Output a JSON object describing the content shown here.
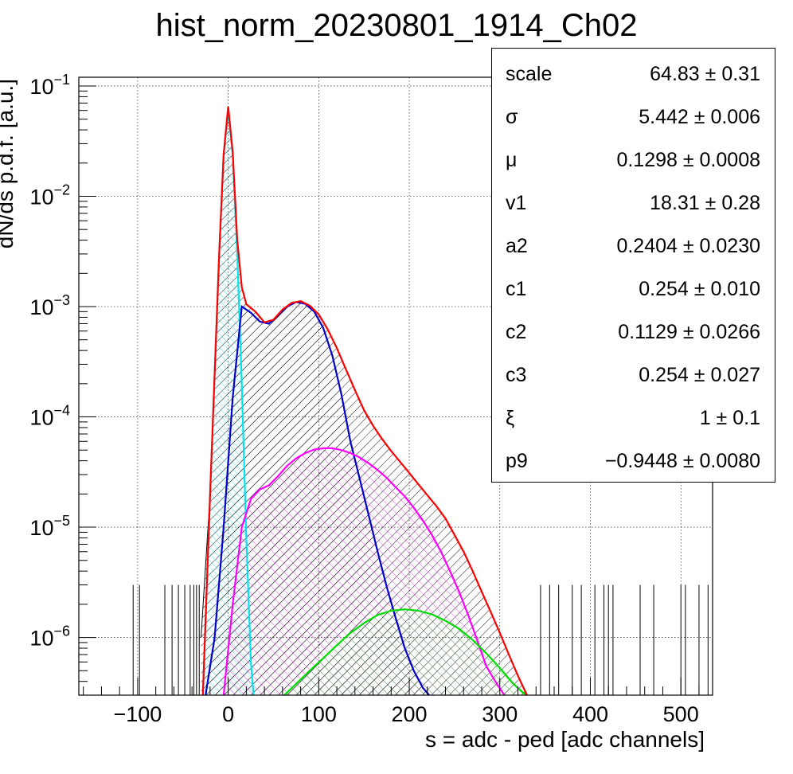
{
  "title": "hist_norm_20230801_1914_Ch02",
  "chart_data": {
    "type": "histogram",
    "title": "hist_norm_20230801_1914_Ch02",
    "xlabel": "s = adc - ped [adc channels]",
    "ylabel": "dN/ds p.d.f. [a.u.]",
    "xlim": [
      -165,
      535
    ],
    "ylim": [
      3e-07,
      0.12
    ],
    "yscale": "log",
    "grid": true,
    "x_ticks": [
      -100,
      0,
      100,
      200,
      300,
      400,
      500
    ],
    "x_tick_labels": [
      "−100",
      "0",
      "100",
      "200",
      "300",
      "400",
      "500"
    ],
    "y_ticks": [
      1e-06,
      1e-05,
      0.0001,
      0.001,
      0.01,
      0.1
    ],
    "y_tick_labels": [
      {
        "base": "10",
        "exp": "−6"
      },
      {
        "base": "10",
        "exp": "−5"
      },
      {
        "base": "10",
        "exp": "−4"
      },
      {
        "base": "10",
        "exp": "−3"
      },
      {
        "base": "10",
        "exp": "−2"
      },
      {
        "base": "10",
        "exp": "−1"
      }
    ],
    "series": [
      {
        "color": "#000000",
        "style": "histogram",
        "x": [
          -30,
          -20,
          -10,
          -5,
          0,
          5,
          10,
          15,
          20,
          30,
          40,
          50,
          60,
          70,
          80,
          90,
          100,
          110,
          120,
          130,
          140,
          150,
          160,
          170,
          180,
          190,
          200,
          210,
          220,
          230,
          240,
          250,
          260,
          270,
          280,
          290,
          300,
          310,
          320,
          330
        ],
        "y": [
          1e-06,
          2e-05,
          0.003,
          0.024,
          0.062,
          0.025,
          0.004,
          0.0015,
          0.00105,
          0.0009,
          0.00072,
          0.00076,
          0.00094,
          0.00108,
          0.00112,
          0.00102,
          0.00085,
          0.00062,
          0.00042,
          0.00027,
          0.000175,
          0.000115,
          8.3e-05,
          6.3e-05,
          4.9e-05,
          3.9e-05,
          3.1e-05,
          2.45e-05,
          1.95e-05,
          1.55e-05,
          1.2e-05,
          8.5e-06,
          6e-06,
          4e-06,
          2.6e-06,
          1.7e-06,
          1.1e-06,
          7e-07,
          4.5e-07,
          3e-07
        ]
      },
      {
        "color": "#ff0000",
        "style": "line",
        "x": [
          -28,
          -20,
          -10,
          -5,
          0,
          5,
          10,
          15,
          20,
          30,
          40,
          50,
          60,
          70,
          80,
          90,
          100,
          110,
          120,
          130,
          140,
          150,
          160,
          170,
          180,
          190,
          200,
          210,
          220,
          230,
          240,
          250,
          260,
          270,
          280,
          290,
          300,
          310,
          320,
          330,
          335
        ],
        "y": [
          3e-07,
          2e-05,
          0.003,
          0.024,
          0.065,
          0.025,
          0.004,
          0.0015,
          0.00105,
          0.0009,
          0.00072,
          0.00076,
          0.00094,
          0.00108,
          0.00112,
          0.00102,
          0.00085,
          0.00062,
          0.00042,
          0.00027,
          0.000175,
          0.000115,
          8.3e-05,
          6.3e-05,
          4.9e-05,
          3.9e-05,
          3.1e-05,
          2.45e-05,
          1.95e-05,
          1.55e-05,
          1.2e-05,
          8.5e-06,
          6e-06,
          4e-06,
          2.6e-06,
          1.7e-06,
          1.1e-06,
          7e-07,
          4.5e-07,
          3e-07,
          2.6e-07
        ]
      },
      {
        "color": "#00e5ee",
        "style": "filled",
        "x": [
          -28,
          -20,
          -10,
          -5,
          0,
          5,
          10,
          15,
          20,
          25,
          28
        ],
        "y": [
          3e-07,
          2e-05,
          0.003,
          0.024,
          0.06,
          0.024,
          0.003,
          0.0002,
          8e-06,
          6e-07,
          3e-07
        ]
      },
      {
        "color": "#0000cc",
        "style": "filled",
        "x": [
          -25,
          -15,
          -5,
          5,
          15,
          25,
          35,
          45,
          55,
          65,
          75,
          85,
          95,
          105,
          115,
          125,
          135,
          145,
          155,
          165,
          175,
          185,
          195,
          205,
          215,
          222
        ],
        "y": [
          3e-07,
          1e-06,
          1e-05,
          0.00015,
          0.001,
          0.00088,
          0.00073,
          0.0007,
          0.00083,
          0.001,
          0.0011,
          0.00106,
          0.0009,
          0.00064,
          0.00036,
          0.00016,
          6e-05,
          2.8e-05,
          1.3e-05,
          6e-06,
          2.9e-06,
          1.5e-06,
          8e-07,
          5e-07,
          3.5e-07,
          3e-07
        ]
      },
      {
        "color": "#ff00ff",
        "style": "filled",
        "x": [
          -5,
          5,
          15,
          25,
          35,
          45,
          55,
          65,
          75,
          85,
          95,
          105,
          115,
          125,
          135,
          145,
          155,
          165,
          175,
          185,
          195,
          205,
          215,
          225,
          235,
          245,
          255,
          265,
          275,
          285,
          295,
          305,
          315,
          325,
          330
        ],
        "y": [
          3e-07,
          2e-06,
          1e-05,
          1.8e-05,
          2.2e-05,
          2.4e-05,
          2.9e-05,
          3.6e-05,
          4.2e-05,
          4.7e-05,
          5.05e-05,
          5.2e-05,
          5.2e-05,
          5e-05,
          4.7e-05,
          4.3e-05,
          3.8e-05,
          3.3e-05,
          2.8e-05,
          2.3e-05,
          1.9e-05,
          1.5e-05,
          1.15e-05,
          8.5e-06,
          6e-06,
          4e-06,
          2.6e-06,
          1.6e-06,
          9.5e-07,
          5.5e-07,
          4e-07,
          3e-07,
          2.5e-07,
          2.2e-07,
          2e-07
        ]
      },
      {
        "color": "#00dd00",
        "style": "filled",
        "x": [
          62,
          75,
          90,
          105,
          120,
          135,
          150,
          165,
          180,
          195,
          210,
          225,
          240,
          255,
          270,
          285,
          300,
          315,
          325,
          330
        ],
        "y": [
          3e-07,
          3.8e-07,
          5e-07,
          6.5e-07,
          8.5e-07,
          1.1e-06,
          1.35e-06,
          1.6e-06,
          1.75e-06,
          1.8e-06,
          1.75e-06,
          1.62e-06,
          1.42e-06,
          1.2e-06,
          9.5e-07,
          7.2e-07,
          5.3e-07,
          3.8e-07,
          3.2e-07,
          3e-07
        ]
      }
    ],
    "legend_position": "top-right"
  },
  "stats": [
    {
      "name": "scale",
      "value": "64.83",
      "pm": "±",
      "error": "0.31"
    },
    {
      "name": "σ",
      "value": "5.442",
      "pm": "±",
      "error": "0.006"
    },
    {
      "name": "μ",
      "value": "0.1298",
      "pm": "±",
      "error": "0.0008"
    },
    {
      "name": "v1",
      "value": "18.31",
      "pm": "±",
      "error": "0.28"
    },
    {
      "name": "a2",
      "value": "0.2404",
      "pm": "±",
      "error": "0.0230"
    },
    {
      "name": "c1",
      "value": "0.254",
      "pm": "±",
      "error": "0.010"
    },
    {
      "name": "c2",
      "value": "0.1129",
      "pm": "±",
      "error": "0.0266"
    },
    {
      "name": "c3",
      "value": "0.254",
      "pm": "±",
      "error": "0.027"
    },
    {
      "name": "ξ",
      "value": "1",
      "pm": "±",
      "error": "0.1"
    },
    {
      "name": "p9",
      "value": "−0.9448",
      "pm": "±",
      "error": "0.0080"
    }
  ]
}
